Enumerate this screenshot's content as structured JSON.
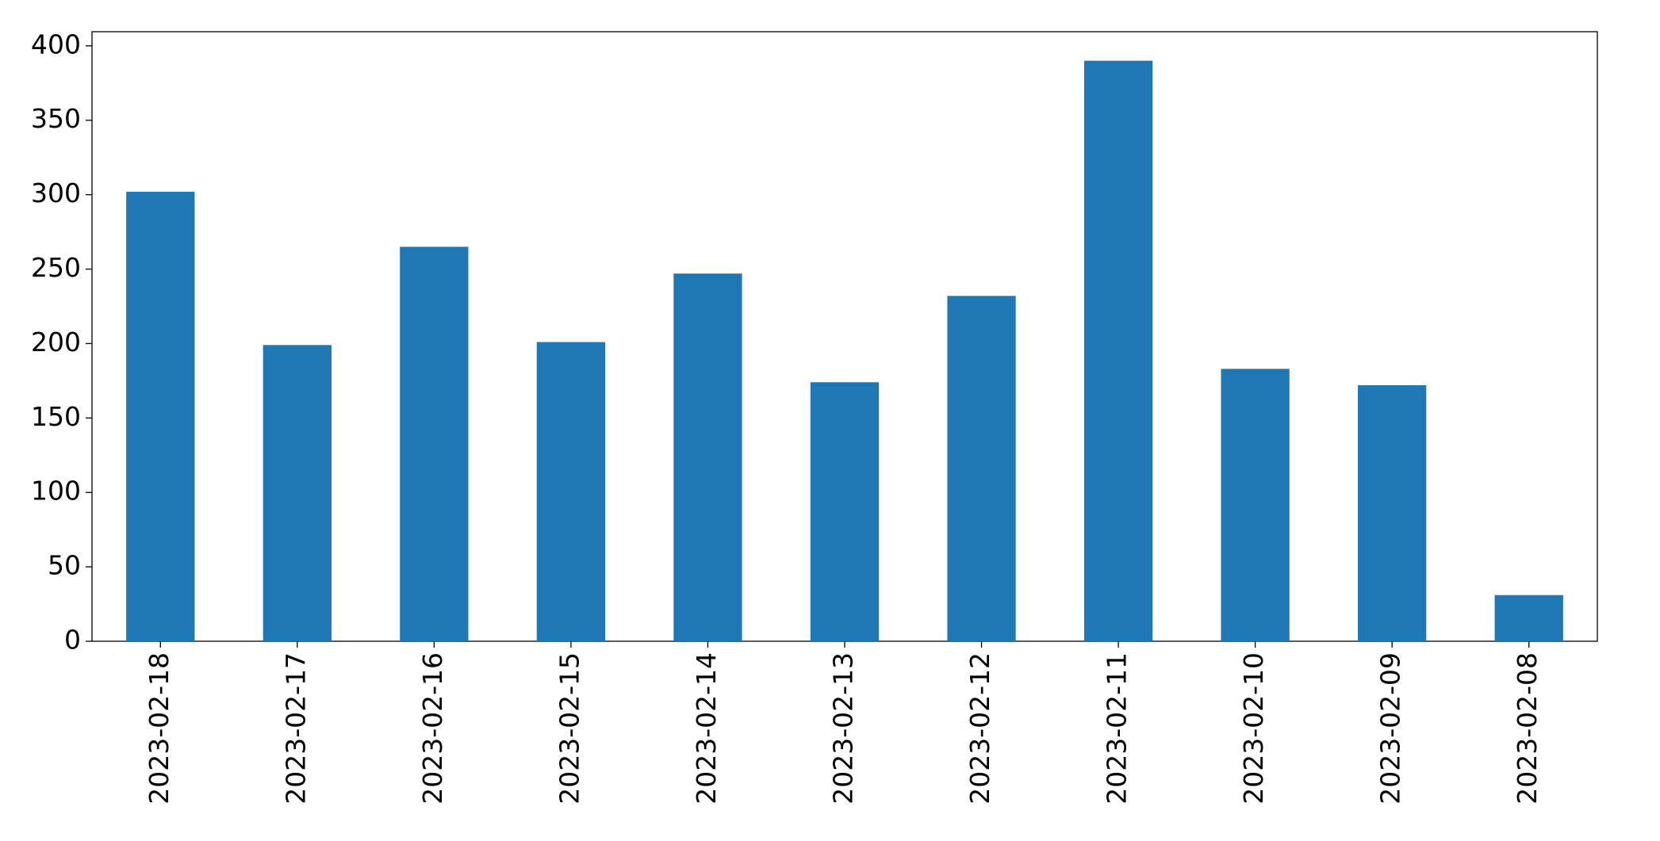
{
  "chart_data": {
    "type": "bar",
    "categories": [
      "2023-02-18",
      "2023-02-17",
      "2023-02-16",
      "2023-02-15",
      "2023-02-14",
      "2023-02-13",
      "2023-02-12",
      "2023-02-11",
      "2023-02-10",
      "2023-02-09",
      "2023-02-08"
    ],
    "values": [
      302,
      199,
      265,
      201,
      247,
      174,
      232,
      390,
      183,
      172,
      31
    ],
    "color": "#1f77b4",
    "ylim": [
      0,
      409.5
    ],
    "yticks": [
      0,
      50,
      100,
      150,
      200,
      250,
      300,
      350,
      400
    ],
    "grid": false
  }
}
